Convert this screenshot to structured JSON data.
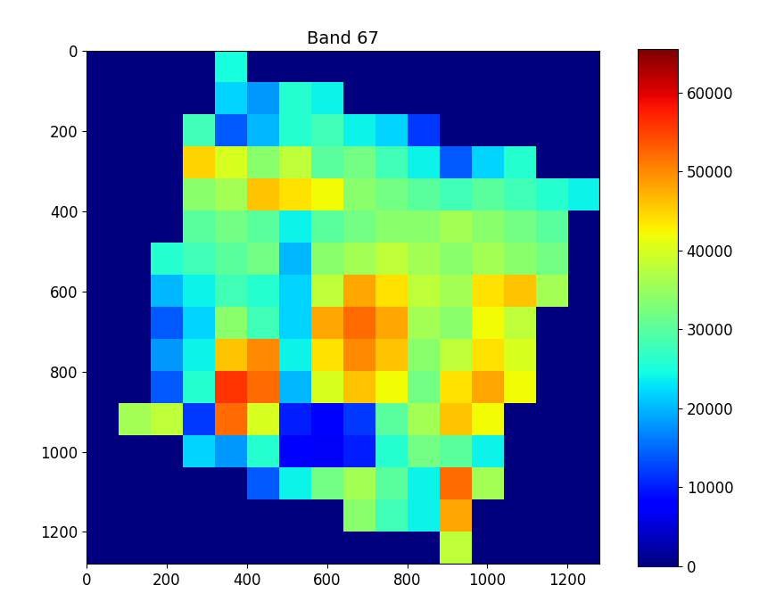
{
  "chart_data": {
    "type": "heatmap",
    "title": "Band 67",
    "color": "jet",
    "xlim": [
      0,
      1280
    ],
    "ylim": [
      1280,
      0
    ],
    "xticks": [
      0,
      200,
      400,
      600,
      800,
      1000,
      1200
    ],
    "yticks": [
      0,
      200,
      400,
      600,
      800,
      1000,
      1200
    ],
    "colorbar_range": [
      0,
      65535
    ],
    "colorbar_ticks": [
      0,
      10000,
      20000,
      30000,
      40000,
      50000,
      60000
    ],
    "cells": [
      [
        0,
        0,
        0,
        0,
        25000,
        0,
        0,
        0,
        0,
        0,
        0,
        0,
        0,
        0,
        0,
        0
      ],
      [
        0,
        0,
        0,
        0,
        22000,
        18000,
        26000,
        24000,
        0,
        0,
        0,
        0,
        0,
        0,
        0,
        0
      ],
      [
        0,
        0,
        0,
        28000,
        14000,
        20000,
        26000,
        28000,
        24000,
        22000,
        12000,
        0,
        0,
        0,
        0,
        0
      ],
      [
        0,
        0,
        0,
        45000,
        40000,
        34000,
        38000,
        30000,
        32000,
        28000,
        24000,
        14000,
        22000,
        26000,
        0,
        0
      ],
      [
        0,
        0,
        0,
        34000,
        36000,
        46000,
        44000,
        42000,
        34000,
        32000,
        30000,
        28000,
        30000,
        28000,
        26000,
        24000
      ],
      [
        0,
        0,
        0,
        30000,
        32000,
        30000,
        24000,
        30000,
        32000,
        34000,
        34000,
        36000,
        34000,
        32000,
        30000,
        0
      ],
      [
        0,
        0,
        26000,
        28000,
        30000,
        32000,
        20000,
        34000,
        36000,
        38000,
        36000,
        34000,
        36000,
        34000,
        32000,
        0
      ],
      [
        0,
        0,
        20000,
        24000,
        28000,
        26000,
        22000,
        38000,
        48000,
        44000,
        38000,
        36000,
        44000,
        46000,
        36000,
        0
      ],
      [
        0,
        0,
        14000,
        22000,
        34000,
        28000,
        22000,
        48000,
        52000,
        48000,
        36000,
        34000,
        42000,
        38000,
        0,
        0
      ],
      [
        0,
        0,
        18000,
        24000,
        46000,
        50000,
        24000,
        44000,
        50000,
        46000,
        34000,
        38000,
        44000,
        40000,
        0,
        0
      ],
      [
        0,
        0,
        14000,
        26000,
        56000,
        52000,
        20000,
        40000,
        46000,
        42000,
        32000,
        44000,
        48000,
        42000,
        0,
        0
      ],
      [
        0,
        36000,
        38000,
        12000,
        52000,
        40000,
        10000,
        8000,
        12000,
        30000,
        36000,
        46000,
        42000,
        0,
        0,
        0
      ],
      [
        0,
        0,
        0,
        22000,
        18000,
        26000,
        8000,
        7000,
        10000,
        26000,
        32000,
        30000,
        24000,
        0,
        0,
        0
      ],
      [
        0,
        0,
        0,
        0,
        0,
        14000,
        24000,
        32000,
        36000,
        30000,
        24000,
        52000,
        36000,
        0,
        0,
        0
      ],
      [
        0,
        0,
        0,
        0,
        0,
        0,
        0,
        0,
        34000,
        28000,
        24000,
        48000,
        0,
        0,
        0,
        0
      ],
      [
        0,
        0,
        0,
        0,
        0,
        0,
        0,
        0,
        0,
        0,
        0,
        38000,
        0,
        0,
        0,
        0
      ]
    ]
  }
}
